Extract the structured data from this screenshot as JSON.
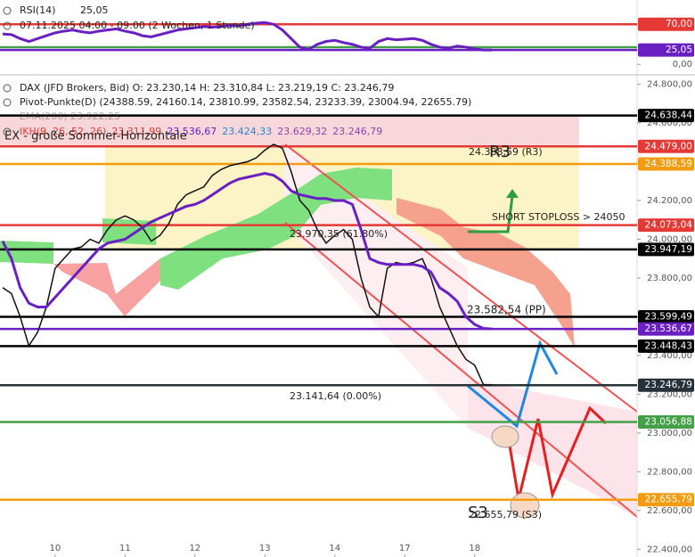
{
  "chart_data": [
    {
      "type": "line",
      "info": [
        "RSI(14)",
        "25,05",
        "07.11.2025 04:00 - 09:00 (2 Wochen, 1 Stunde)"
      ],
      "ylim": [
        -9,
        104
      ],
      "yticks": [
        {
          "value": 0,
          "label": "0,00"
        }
      ],
      "levels": [
        {
          "value": 70,
          "label": "70,00",
          "color": "#e53935"
        },
        {
          "value": 30,
          "color": "#43a047"
        },
        {
          "value": 25.05,
          "label": "25,05",
          "color": "#6a1fc2"
        }
      ],
      "series": [
        {
          "color": "#6a1fc2",
          "values": [
            53,
            52,
            45,
            40,
            45,
            50,
            55,
            58,
            60,
            57,
            55,
            58,
            60,
            62,
            58,
            55,
            50,
            48,
            52,
            56,
            60,
            62,
            64,
            66,
            65,
            66,
            68,
            67,
            70,
            72,
            73,
            70,
            60,
            45,
            30,
            26,
            35,
            40,
            42,
            38,
            35,
            30,
            28,
            40,
            45,
            43,
            44,
            45,
            42,
            35,
            30,
            28,
            32,
            30,
            27,
            25,
            25.05
          ]
        }
      ]
    },
    {
      "type": "line",
      "info": [
        "DAX (JFD Brokers, Bid)  O: 23.230,14  H: 23.310,84  L: 23.219,19  C: 23.246,79",
        "Pivot-Punkte(D)  (24388.59, 24160.14, 23810.99, 23582.54, 23233.39, 23004.94, 22655.79)",
        "EMA(200)  23.922,25"
      ],
      "ikh": [
        {
          "text": "IKH(9, 26, 52, 26)",
          "color": "#e53935"
        },
        {
          "text": "23.311,99",
          "color": "#e53935"
        },
        {
          "text": "23.536,67",
          "color": "#6a1fc2"
        },
        {
          "text": "23.424,33",
          "color": "#1e88e5"
        },
        {
          "text": "23.629,32",
          "color": "#8e44ad"
        },
        {
          "text": "23.246,79",
          "color": "#8e44ad"
        }
      ],
      "categories": [
        null,
        null,
        null,
        null,
        null,
        null,
        "10",
        null,
        null,
        null,
        null,
        null,
        null,
        null,
        "11",
        null,
        null,
        null,
        null,
        null,
        null,
        null,
        "12",
        null,
        null,
        null,
        null,
        null,
        null,
        null,
        "13",
        null,
        null,
        null,
        null,
        null,
        null,
        null,
        "14",
        null,
        null,
        null,
        null,
        null,
        null,
        null,
        "17",
        null,
        null,
        null,
        null,
        null,
        null,
        null,
        "18",
        null,
        null
      ],
      "ylim": [
        22360,
        24830
      ],
      "yticks": [
        {
          "value": 22400,
          "label": "22.400,00"
        },
        {
          "value": 22600,
          "label": "22.600,00"
        },
        {
          "value": 22800,
          "label": "22.800,00"
        },
        {
          "value": 23000,
          "label": "23.000,00"
        },
        {
          "value": 23200,
          "label": "23.200,00"
        },
        {
          "value": 23400,
          "label": "23.400,00"
        },
        {
          "value": 23600,
          "label": "23.600,00"
        },
        {
          "value": 23800,
          "label": "23.800,00"
        },
        {
          "value": 24000,
          "label": "24.000,00"
        },
        {
          "value": 24200,
          "label": "24.200,00"
        },
        {
          "value": 24400,
          "label": "24.400,00"
        },
        {
          "value": 24600,
          "label": "24.600,00"
        },
        {
          "value": 24800,
          "label": "24.800,00"
        }
      ],
      "levels": [
        {
          "value": 24638.44,
          "label": "24.638,44",
          "color": "#000000"
        },
        {
          "value": 24479,
          "label": "24.479,00",
          "color": "#e53935"
        },
        {
          "value": 24388.59,
          "label": "24.388,59",
          "color": "#f39c12"
        },
        {
          "value": 24073.04,
          "label": "24.073,04",
          "color": "#e53935"
        },
        {
          "value": 23947.19,
          "label": "23.947,19",
          "color": "#000000"
        },
        {
          "value": 23599.49,
          "label": "23.599,49",
          "color": "#000000"
        },
        {
          "value": 23536.67,
          "label": "23.536,67",
          "color": "#6a1fc2"
        },
        {
          "value": 23448.43,
          "label": "23.448,43",
          "color": "#000000"
        },
        {
          "value": 23246.79,
          "label": "23.246,79",
          "color": "#263238"
        },
        {
          "value": 23056.88,
          "label": "23.056,88",
          "color": "#43a047"
        },
        {
          "value": 22655.79,
          "label": "22.655,79",
          "color": "#f39c12"
        }
      ],
      "annotations": [
        {
          "text": "EX - große Sommer-Horizontale",
          "color": "#e57373"
        },
        {
          "text": "24.388,59 (R3)",
          "color": "#f5b041"
        },
        {
          "text": "R3",
          "color": "#f39c12"
        },
        {
          "text": "SHORT STOPLOSS > 24050",
          "color": "#e53935"
        },
        {
          "text": "23.582,54 (PP)",
          "color": "#f5b041"
        },
        {
          "text": "23.970,35 (61.80%)",
          "color": "#f1948a"
        },
        {
          "text": "23.141,64 (0.00%)",
          "color": "#ec407a"
        },
        {
          "text": "22.655,79 (S3)",
          "color": "#f39c12"
        },
        {
          "text": "S3",
          "color": "#f39c12"
        }
      ],
      "series": [
        {
          "name": "DAX (JFD Brokers, Bid)",
          "color": "#111111",
          "values": [
            23750,
            23720,
            23600,
            23450,
            23520,
            23650,
            23850,
            23900,
            23950,
            23960,
            24000,
            23980,
            24050,
            24100,
            24120,
            24100,
            24060,
            23990,
            24020,
            24080,
            24180,
            24230,
            24250,
            24270,
            24330,
            24360,
            24380,
            24390,
            24400,
            24420,
            24460,
            24490,
            24470,
            24350,
            24200,
            24150,
            24050,
            23980,
            24020,
            24050,
            24000,
            23800,
            23650,
            23600,
            23850,
            23880,
            23870,
            23880,
            23900,
            23800,
            23650,
            23550,
            23450,
            23380,
            23350,
            23250,
            23246.79
          ]
        },
        {
          "color": "#6a1fc2",
          "values": [
            23990,
            23900,
            23750,
            23670,
            23650,
            23650,
            23700,
            23750,
            23800,
            23850,
            23900,
            23950,
            23980,
            23990,
            24000,
            24030,
            24060,
            24090,
            24110,
            24130,
            24150,
            24170,
            24180,
            24200,
            24230,
            24260,
            24290,
            24310,
            24320,
            24330,
            24340,
            24330,
            24300,
            24250,
            24230,
            24220,
            24210,
            24210,
            24200,
            24200,
            24180,
            24050,
            23900,
            23880,
            23870,
            23870,
            23870,
            23870,
            23860,
            23830,
            23750,
            23720,
            23680,
            23600,
            23560,
            23540,
            23536.67
          ]
        }
      ]
    }
  ]
}
